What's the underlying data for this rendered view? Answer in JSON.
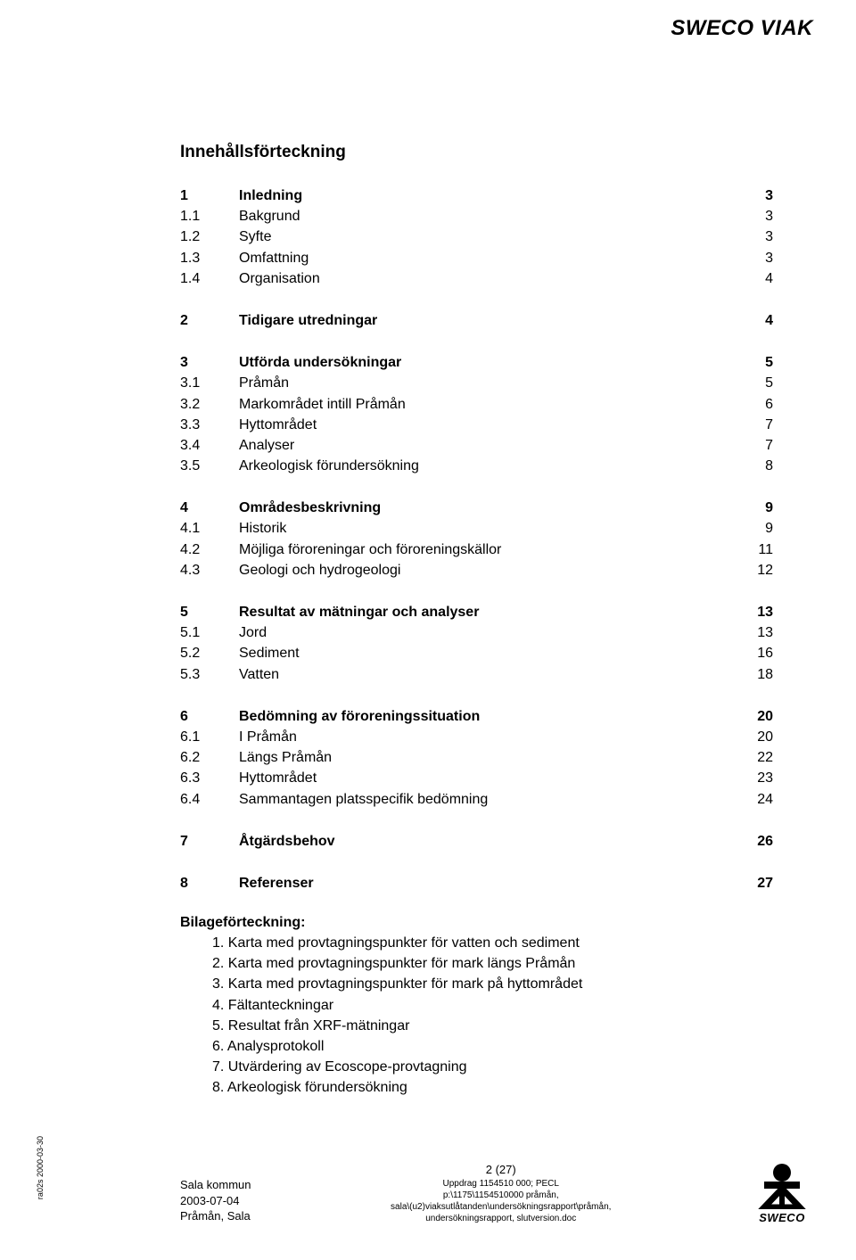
{
  "header": {
    "logo_text": "SWECO VIAK"
  },
  "title": "Innehållsförteckning",
  "toc": [
    {
      "block": [
        {
          "num": "1",
          "label": "Inledning",
          "page": "3",
          "bold": true
        },
        {
          "num": "1.1",
          "label": "Bakgrund",
          "page": "3",
          "bold": false
        },
        {
          "num": "1.2",
          "label": "Syfte",
          "page": "3",
          "bold": false
        },
        {
          "num": "1.3",
          "label": "Omfattning",
          "page": "3",
          "bold": false
        },
        {
          "num": "1.4",
          "label": "Organisation",
          "page": "4",
          "bold": false
        }
      ]
    },
    {
      "block": [
        {
          "num": "2",
          "label": "Tidigare utredningar",
          "page": "4",
          "bold": true
        }
      ]
    },
    {
      "block": [
        {
          "num": "3",
          "label": "Utförda undersökningar",
          "page": "5",
          "bold": true
        },
        {
          "num": "3.1",
          "label": "Pråmån",
          "page": "5",
          "bold": false
        },
        {
          "num": "3.2",
          "label": "Markområdet intill Pråmån",
          "page": "6",
          "bold": false
        },
        {
          "num": "3.3",
          "label": "Hyttområdet",
          "page": "7",
          "bold": false
        },
        {
          "num": "3.4",
          "label": "Analyser",
          "page": "7",
          "bold": false
        },
        {
          "num": "3.5",
          "label": "Arkeologisk förundersökning",
          "page": "8",
          "bold": false
        }
      ]
    },
    {
      "block": [
        {
          "num": "4",
          "label": "Områdesbeskrivning",
          "page": "9",
          "bold": true
        },
        {
          "num": "4.1",
          "label": "Historik",
          "page": "9",
          "bold": false
        },
        {
          "num": "4.2",
          "label": "Möjliga föroreningar och föroreningskällor",
          "page": "11",
          "bold": false
        },
        {
          "num": "4.3",
          "label": "Geologi och hydrogeologi",
          "page": "12",
          "bold": false
        }
      ]
    },
    {
      "block": [
        {
          "num": "5",
          "label": "Resultat av mätningar och analyser",
          "page": "13",
          "bold": true
        },
        {
          "num": "5.1",
          "label": "Jord",
          "page": "13",
          "bold": false
        },
        {
          "num": "5.2",
          "label": "Sediment",
          "page": "16",
          "bold": false
        },
        {
          "num": "5.3",
          "label": "Vatten",
          "page": "18",
          "bold": false
        }
      ]
    },
    {
      "block": [
        {
          "num": "6",
          "label": "Bedömning av föroreningssituation",
          "page": "20",
          "bold": true
        },
        {
          "num": "6.1",
          "label": "I Pråmån",
          "page": "20",
          "bold": false
        },
        {
          "num": "6.2",
          "label": "Längs Pråmån",
          "page": "22",
          "bold": false
        },
        {
          "num": "6.3",
          "label": "Hyttområdet",
          "page": "23",
          "bold": false
        },
        {
          "num": "6.4",
          "label": "Sammantagen platsspecifik bedömning",
          "page": "24",
          "bold": false
        }
      ]
    },
    {
      "block": [
        {
          "num": "7",
          "label": "Åtgärdsbehov",
          "page": "26",
          "bold": true
        }
      ]
    },
    {
      "block": [
        {
          "num": "8",
          "label": "Referenser",
          "page": "27",
          "bold": true
        }
      ]
    }
  ],
  "attachments": {
    "heading": "Bilageförteckning:",
    "items": [
      "1. Karta med provtagningspunkter för vatten och sediment",
      "2. Karta med provtagningspunkter för mark längs Pråmån",
      "3. Karta med provtagningspunkter för mark på hyttområdet",
      "4. Fältanteckningar",
      "5. Resultat från XRF-mätningar",
      "6. Analysprotokoll",
      "7. Utvärdering av Ecoscope-provtagning",
      "8. Arkeologisk förundersökning"
    ]
  },
  "sidebar_code": "ra02s 2000-03-30",
  "footer": {
    "left_line1": "Sala kommun",
    "left_line2": "2003-07-04",
    "left_line3": "Pråmån, Sala",
    "page_num": "2 (27)",
    "center_line1": "Uppdrag 1154510 000; PECL",
    "center_line2": "p:\\1175\\1154510000 pråmån,",
    "center_line3": "sala\\(u2)viaksutlåtanden\\undersökningsrapport\\pråmån,",
    "center_line4": "undersökningsrapport, slutversion.doc",
    "right_brand": "SWECO"
  },
  "colors": {
    "text": "#000000",
    "background": "#ffffff"
  },
  "typography": {
    "body_fontsize": 16,
    "title_fontsize": 19,
    "footer_fontsize": 13,
    "footer_small_fontsize": 10,
    "logo_fontsize": 24
  }
}
